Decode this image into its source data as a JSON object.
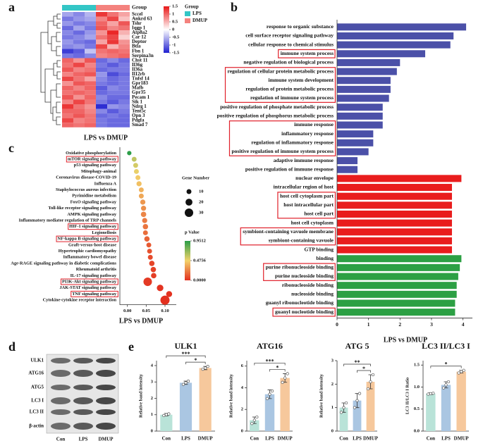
{
  "panel_labels": [
    "a",
    "b",
    "c",
    "d",
    "e"
  ],
  "chart_data": [
    {
      "type": "heatmap",
      "xlabel": "LPS vs DMUP",
      "group_label": "Group",
      "legend_title": "Group",
      "rows": [
        "Sccel",
        "Ankrd 63",
        "Tshr",
        "Iqgp 1",
        "Atp8a2",
        "Car 12",
        "Deptor",
        "Btla",
        "Fbn 1",
        "Serpina3n",
        "Chst 11",
        "Il36g",
        "Il36a",
        "Il12rb",
        "Tnfsf 14",
        "Gpr183",
        "Mafb",
        "Gpr35",
        "Pecam 1",
        "Sik 1",
        "Ndrg 1",
        "Tent5c",
        "Opn 3",
        "Pdgfa",
        "Smad 7"
      ],
      "series": [
        {
          "name": "LPS",
          "color": "#33c6c6",
          "values": [
            [
              -0.6,
              -0.8,
              -0.5
            ],
            [
              -0.9,
              -0.7,
              -0.6
            ],
            [
              -0.7,
              -0.9,
              -0.8
            ],
            [
              -1.0,
              -0.6,
              -0.9
            ],
            [
              -0.8,
              -1.0,
              -0.7
            ],
            [
              -0.9,
              -0.8,
              -0.6
            ],
            [
              -0.7,
              -0.9,
              -1.0
            ],
            [
              -0.8,
              -0.7,
              -0.9
            ],
            [
              -1.3,
              -1.1,
              -0.4
            ],
            [
              -0.9,
              -1.0,
              -0.8
            ],
            [
              1.0,
              0.7,
              1.1
            ],
            [
              0.9,
              1.2,
              0.8
            ],
            [
              1.1,
              0.8,
              0.9
            ],
            [
              0.8,
              1.0,
              1.1
            ],
            [
              1.2,
              0.9,
              0.6
            ],
            [
              0.7,
              1.1,
              1.0
            ],
            [
              1.0,
              0.8,
              1.0
            ],
            [
              0.9,
              1.0,
              0.9
            ],
            [
              1.1,
              0.7,
              1.0
            ],
            [
              0.8,
              1.2,
              0.9
            ],
            [
              1.3,
              0.9,
              0.7
            ],
            [
              1.0,
              1.0,
              0.8
            ],
            [
              0.9,
              1.1,
              0.9
            ],
            [
              1.2,
              0.8,
              0.9
            ],
            [
              1.0,
              0.9,
              1.0
            ]
          ]
        },
        {
          "name": "DMUP",
          "color": "#f4827e",
          "values": [
            [
              1.3,
              0.9,
              0.6
            ],
            [
              0.8,
              1.2,
              0.4
            ],
            [
              1.0,
              0.6,
              1.1
            ],
            [
              1.1,
              0.8,
              0.9
            ],
            [
              0.7,
              1.4,
              0.5
            ],
            [
              0.9,
              1.2,
              0.3
            ],
            [
              0.6,
              1.3,
              0.7
            ],
            [
              1.2,
              0.5,
              0.8
            ],
            [
              0.9,
              1.0,
              0.9
            ],
            [
              0.8,
              0.9,
              1.0
            ],
            [
              -1.0,
              -0.8,
              -1.0
            ],
            [
              -0.9,
              -1.1,
              -0.9
            ],
            [
              -1.0,
              -0.9,
              -0.9
            ],
            [
              -0.7,
              -1.2,
              -1.0
            ],
            [
              -0.8,
              -1.0,
              -0.9
            ],
            [
              -0.9,
              -1.0,
              -0.9
            ],
            [
              -1.1,
              -0.8,
              -0.9
            ],
            [
              -1.0,
              -0.9,
              -0.9
            ],
            [
              -0.8,
              -1.0,
              -1.0
            ],
            [
              -0.9,
              -1.1,
              -0.9
            ],
            [
              -1.4,
              -0.7,
              -0.8
            ],
            [
              -0.8,
              -1.1,
              -0.9
            ],
            [
              -1.0,
              -0.9,
              -1.0
            ],
            [
              -0.9,
              -1.0,
              -1.0
            ],
            [
              -0.9,
              -1.0,
              -1.0
            ]
          ]
        }
      ],
      "zlim": [
        -1.5,
        1.5
      ],
      "zticks": [
        1.5,
        1,
        0.5,
        0,
        -0.5,
        -1,
        -1.5
      ],
      "colors": [
        "#1f1fd0",
        "#ffffff",
        "#e81818"
      ]
    },
    {
      "type": "bar",
      "orientation": "horizontal",
      "xlabel": "LPS vs DMUP",
      "categories": [
        "response to organic substance",
        "cell surface receptor signaling pathway",
        "cellular response to chemical stimulus",
        "immune system process",
        "negative regulation of biological process",
        "regulation of cellular protein metabolic process",
        "immune system development",
        "regulation of protein metabolic process",
        "regulation of immune system process",
        "positive regulation of phosphate metabolic process",
        "positive regulation of phosphorus metabolic process",
        "immune response",
        "inflammatory response",
        "regulation of inflammatory response",
        "positive regulation of immune system process",
        "adaptive immune response",
        "positive regulation of immune response",
        "nuclear envelope",
        "intracellular region of host",
        "host cell cytoplasm part",
        "host intracellular part",
        "host cell part",
        "host cell cytoplasm",
        "symbiont-containing vavuole membrane",
        "symbiont-containing vavuole",
        "GTP binding",
        "binding",
        "purine ribonucleoside binding",
        "purine nucleoside binding",
        "ribonucleoside binding",
        "nucleoside binding",
        "guanyl ribonucleotide binding",
        "guanyl nucleotide binding"
      ],
      "values": [
        4.1,
        3.7,
        3.6,
        2.8,
        2.0,
        1.9,
        1.7,
        1.7,
        1.65,
        1.45,
        1.45,
        1.45,
        1.15,
        1.15,
        1.0,
        0.65,
        0.65,
        3.95,
        3.65,
        3.65,
        3.65,
        3.65,
        3.65,
        3.65,
        3.65,
        3.65,
        3.95,
        3.9,
        3.85,
        3.8,
        3.8,
        3.75,
        3.75
      ],
      "colors": [
        "#4b50a8",
        "#4b50a8",
        "#4b50a8",
        "#4b50a8",
        "#4b50a8",
        "#4b50a8",
        "#4b50a8",
        "#4b50a8",
        "#4b50a8",
        "#4b50a8",
        "#4b50a8",
        "#4b50a8",
        "#4b50a8",
        "#4b50a8",
        "#4b50a8",
        "#4b50a8",
        "#4b50a8",
        "#e91d1d",
        "#e91d1d",
        "#e91d1d",
        "#e91d1d",
        "#e91d1d",
        "#e91d1d",
        "#e91d1d",
        "#e91d1d",
        "#e91d1d",
        "#2ca044",
        "#2ca044",
        "#2ca044",
        "#2ca044",
        "#2ca044",
        "#2ca044",
        "#2ca044"
      ],
      "xlim": [
        0,
        4.3
      ],
      "xticks": [
        0,
        1,
        2,
        3,
        4
      ],
      "highlight": [
        [
          3,
          3
        ],
        [
          5,
          8
        ],
        [
          11,
          14
        ],
        [
          19,
          21
        ],
        [
          23,
          24
        ],
        [
          27,
          28
        ],
        [
          32,
          32
        ]
      ],
      "highlight_color": "#e0202a"
    },
    {
      "type": "dot",
      "xlabel": "LPS vs DMUP",
      "categories": [
        "Oxidative phosphorylation",
        "mTOR signaling pathway",
        "p53 signaling pathway",
        "Mitophagy-animal",
        "Coronavirus disease-COVID-19",
        "Influenza A",
        "Staphylococcus aureus infection",
        "Pyrimidine metabolism",
        "FoxO signaling pathway",
        "Toll-like receptor signaling pathway",
        "AMPK signaling pathway",
        "Inflammatory mediator regulation of TRP channels",
        "HIF-1 signaling pathway",
        "Legionellosis",
        "NF-kappa B signaling pathway",
        "Graft-versus-host disease",
        "Hypertrophic cardiomyopathy",
        "Inflammatory bowel disease",
        "Age-RAGE signaling pathway in diabetic complications",
        "Rheumatoid arthritis",
        "IL-17 signaling pathway",
        "PI3K-Akt signaling pathway",
        "JAK-STAT signaling pathway",
        "TNF signaling pathway",
        "Cytokine-cytokine receptor interaction"
      ],
      "values": [
        0.005,
        0.018,
        0.022,
        0.024,
        0.028,
        0.031,
        0.037,
        0.037,
        0.041,
        0.043,
        0.043,
        0.046,
        0.048,
        0.048,
        0.052,
        0.057,
        0.059,
        0.061,
        0.065,
        0.069,
        0.07,
        0.054,
        0.087,
        0.111,
        0.1
      ],
      "sizes": [
        8,
        10,
        10,
        10,
        10,
        11,
        10,
        10,
        11,
        11,
        12,
        11,
        12,
        10,
        12,
        10,
        10,
        10,
        12,
        12,
        12,
        30,
        18,
        15,
        35
      ],
      "p_values": [
        0.95,
        0.6,
        0.55,
        0.5,
        0.45,
        0.42,
        0.38,
        0.35,
        0.3,
        0.28,
        0.25,
        0.22,
        0.2,
        0.18,
        0.15,
        0.12,
        0.1,
        0.08,
        0.06,
        0.05,
        0.04,
        0.03,
        0.01,
        0.005,
        0.001
      ],
      "xlim": [
        -0.02,
        0.13
      ],
      "xticks": [
        {
          "value": 0,
          "label": "0.00"
        },
        0.05,
        {
          "value": 0.1,
          "label": "0.10"
        }
      ],
      "size_title": "Gene Number",
      "size_ticks": [
        10,
        20,
        30
      ],
      "color_title": "p Value",
      "color_ticks": [
        0.9512,
        0.4756,
        {
          "value": 0,
          "label": "0.0000"
        }
      ],
      "colors": [
        "#e3301f",
        "#f3d36b",
        "#2b9e48"
      ],
      "highlight": [
        1,
        12,
        14,
        21,
        23
      ],
      "highlight_color": "#e0202a"
    },
    {
      "type": "bar",
      "title": "ULK1",
      "ylabel": "Relative band intensity",
      "categories": [
        "Con",
        "LPS",
        "DMUP"
      ],
      "values": [
        1.0,
        2.95,
        3.85
      ],
      "errors": [
        0.08,
        0.1,
        0.1
      ],
      "points": [
        [
          0.95,
          1.0,
          1.05
        ],
        [
          2.85,
          2.95,
          3.05
        ],
        [
          3.78,
          3.85,
          3.95
        ]
      ],
      "colors": [
        "#b9e3d8",
        "#aac6e2",
        "#f6c89c"
      ],
      "ylim": [
        0,
        4.3
      ],
      "yticks": [
        0,
        1,
        2,
        3,
        4
      ],
      "annotations": [
        {
          "text": "***",
          "from": 0,
          "to": 2
        },
        {
          "text": "*",
          "from": 1,
          "to": 2
        }
      ]
    },
    {
      "type": "bar",
      "title": "ATG16",
      "ylabel": "Relative band intensity",
      "categories": [
        "Con",
        "LPS",
        "DMUP"
      ],
      "values": [
        1.0,
        3.4,
        4.9
      ],
      "errors": [
        0.3,
        0.4,
        0.4
      ],
      "points": [
        [
          0.7,
          1.0,
          1.3
        ],
        [
          3.0,
          3.4,
          3.7
        ],
        [
          4.5,
          4.9,
          5.3
        ]
      ],
      "colors": [
        "#b9e3d8",
        "#aac6e2",
        "#f6c89c"
      ],
      "ylim": [
        0,
        6.5
      ],
      "yticks": [
        0,
        2,
        4,
        6
      ],
      "annotations": [
        {
          "text": "***",
          "from": 0,
          "to": 2
        },
        {
          "text": "*",
          "from": 1,
          "to": 2
        }
      ]
    },
    {
      "type": "bar",
      "title": "ATG 5",
      "ylabel": "Relative band intensity",
      "categories": [
        "Con",
        "LPS",
        "DMUP"
      ],
      "values": [
        1.0,
        1.3,
        2.1
      ],
      "errors": [
        0.2,
        0.3,
        0.3
      ],
      "points": [
        [
          0.8,
          1.0,
          1.2
        ],
        [
          1.0,
          1.3,
          1.6
        ],
        [
          1.8,
          2.1,
          2.4
        ]
      ],
      "colors": [
        "#b9e3d8",
        "#aac6e2",
        "#f6c89c"
      ],
      "ylim": [
        0,
        3
      ],
      "yticks": [
        0,
        1,
        2,
        3
      ],
      "annotations": [
        {
          "text": "**",
          "from": 0,
          "to": 2
        },
        {
          "text": "*",
          "from": 1,
          "to": 2
        }
      ]
    },
    {
      "type": "bar",
      "title": "LC3 II/LC3 I",
      "ylabel": "LC3 II/LC3 I Ratio",
      "categories": [
        "Con",
        "LPS",
        "DMUP"
      ],
      "values": [
        0.85,
        1.05,
        1.35
      ],
      "errors": [
        0.02,
        0.07,
        0.03
      ],
      "points": [
        [
          0.84,
          0.85,
          0.86
        ],
        [
          0.98,
          1.05,
          1.12
        ],
        [
          1.32,
          1.35,
          1.38
        ]
      ],
      "colors": [
        "#b9e3d8",
        "#aac6e2",
        "#f6c89c"
      ],
      "ylim": [
        0,
        1.6
      ],
      "yticks": [
        {
          "value": 0,
          "label": "0.0"
        },
        0.5,
        {
          "value": 1,
          "label": "1.0"
        },
        1.5
      ],
      "annotations": [
        {
          "text": "*",
          "from": 0,
          "to": 2
        }
      ]
    }
  ],
  "blot": {
    "proteins": [
      "ULK1",
      "ATG16",
      "ATG5",
      "LC3 I",
      "LC3 II",
      "β-actin"
    ],
    "lanes": [
      "Con",
      "LPS",
      "DMUP"
    ]
  }
}
